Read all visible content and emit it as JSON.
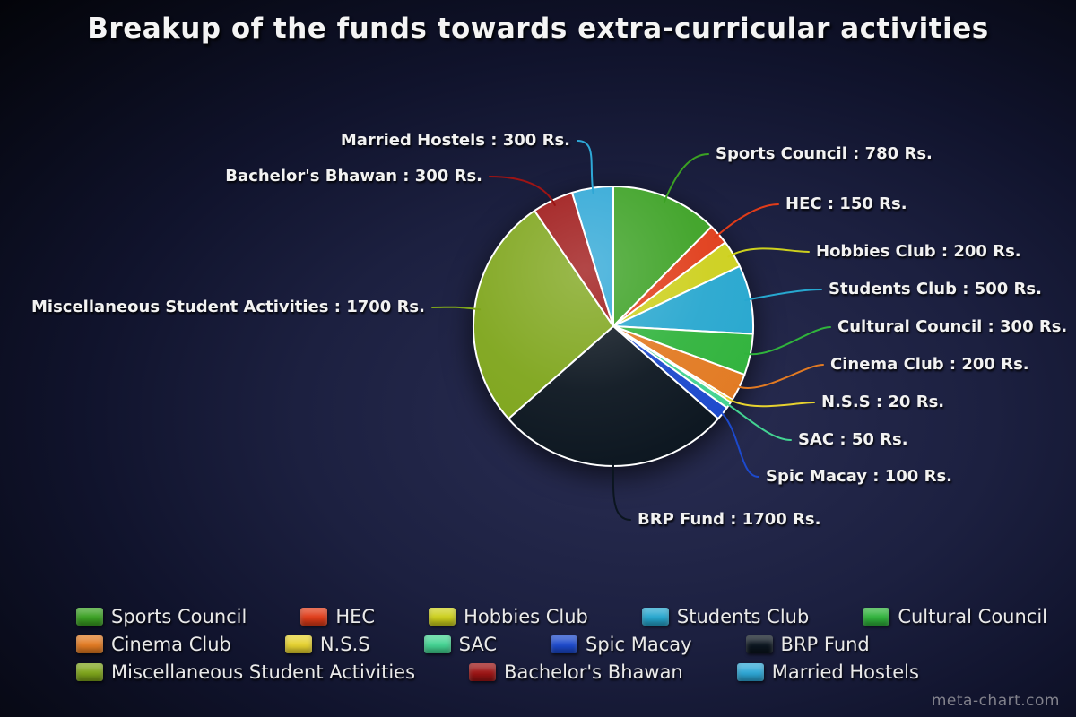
{
  "title": "Breakup of the funds towards extra-curricular activities",
  "watermark": "meta-chart.com",
  "chart_data": {
    "type": "pie",
    "title": "Breakup of the funds towards extra-curricular activities",
    "unit": "Rs.",
    "legend_position": "bottom",
    "start_angle_deg": 0,
    "direction": "clockwise",
    "slices": [
      {
        "label": "Sports Council",
        "value": 780,
        "color": "#3ba123",
        "annotation": "Sports Council : 780 Rs."
      },
      {
        "label": "HEC",
        "value": 150,
        "color": "#e03c19",
        "annotation": "HEC : 150 Rs."
      },
      {
        "label": "Hobbies Club",
        "value": 200,
        "color": "#cdd01d",
        "annotation": "Hobbies Club : 200 Rs."
      },
      {
        "label": "Students Club",
        "value": 500,
        "color": "#27a7cf",
        "annotation": "Students Club : 500 Rs."
      },
      {
        "label": "Cultural Council",
        "value": 300,
        "color": "#30b33c",
        "annotation": "Cultural Council : 300 Rs."
      },
      {
        "label": "Cinema Club",
        "value": 200,
        "color": "#e27a22",
        "annotation": "Cinema Club : 200 Rs."
      },
      {
        "label": "N.S.S",
        "value": 20,
        "color": "#e6d22f",
        "annotation": "N.S.S : 20 Rs."
      },
      {
        "label": "SAC",
        "value": 50,
        "color": "#43d392",
        "annotation": "SAC : 50 Rs."
      },
      {
        "label": "Spic Macay",
        "value": 100,
        "color": "#1c49cc",
        "annotation": "Spic Macay : 100 Rs."
      },
      {
        "label": "BRP Fund",
        "value": 1700,
        "color": "#0b151f",
        "annotation": "BRP Fund : 1700 Rs."
      },
      {
        "label": "Miscellaneous Student Activities",
        "value": 1700,
        "color": "#7ea51b",
        "annotation": "Miscellaneous Student Activities : 1700 Rs."
      },
      {
        "label": "Bachelor's Bhawan",
        "value": 300,
        "color": "#9d1414",
        "annotation": "Bachelor's Bhawan : 300 Rs."
      },
      {
        "label": "Married Hostels",
        "value": 300,
        "color": "#2ea7d6",
        "annotation": "Married Hostels : 300 Rs."
      }
    ]
  }
}
